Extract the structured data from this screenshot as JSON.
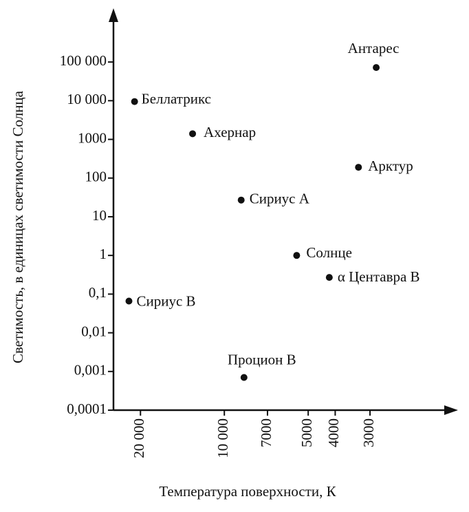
{
  "chart_data": {
    "type": "scatter",
    "x_label": "Температура поверхности, К",
    "y_label": "Светимость, в единицах светимости Солнца",
    "labels": [
      "Антарес",
      "Беллатрикс",
      "Ахернар",
      "Арктур",
      "Сириус А",
      "Солнце",
      "α Центавра В",
      "Сириус В",
      "Процион В"
    ],
    "x": [
      2850,
      21000,
      13000,
      3300,
      8700,
      5500,
      4200,
      22000,
      8500
    ],
    "values": [
      72000,
      9500,
      1400,
      190,
      27,
      1,
      0.27,
      0.066,
      0.0007
    ],
    "color": "#111111",
    "x_log": true,
    "y_log": true,
    "xlim": [
      25000,
      1500
    ],
    "ylim": [
      0.0001,
      2000000
    ],
    "xticks": [
      {
        "value": 20000,
        "label": "20 000"
      },
      {
        "value": 10000,
        "label": "10 000"
      },
      7000,
      5000,
      4000,
      3000
    ],
    "yticks": [
      {
        "value": 100000,
        "label": "100 000"
      },
      {
        "value": 10000,
        "label": "10 000"
      },
      1000,
      100,
      10,
      1,
      {
        "value": 0.1,
        "label": "0,1"
      },
      {
        "value": 0.01,
        "label": "0,01"
      },
      {
        "value": 0.001,
        "label": "0,001"
      },
      {
        "value": 0.0001,
        "label": "0,0001"
      }
    ]
  }
}
